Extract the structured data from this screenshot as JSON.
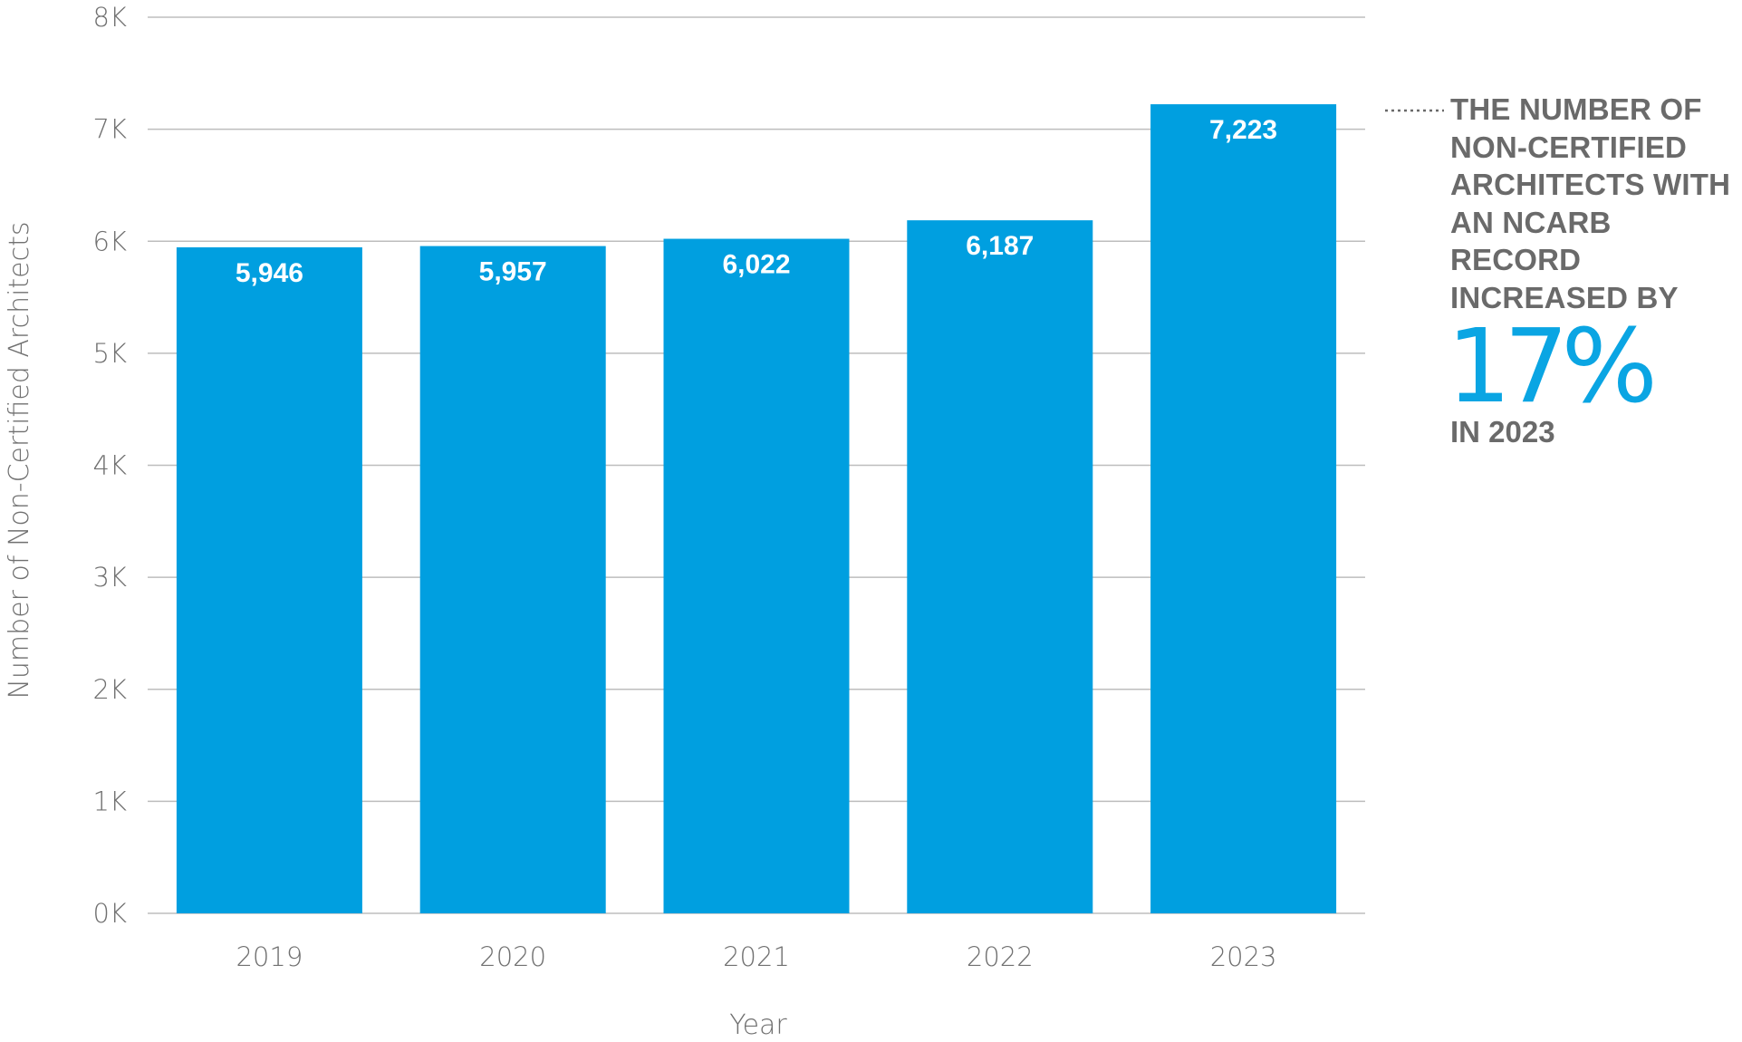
{
  "chart_data": {
    "type": "bar",
    "categories": [
      "2019",
      "2020",
      "2021",
      "2022",
      "2023"
    ],
    "values": [
      5946,
      5957,
      6022,
      6187,
      7223
    ],
    "value_labels": [
      "5,946",
      "5,957",
      "6,022",
      "6,187",
      "7,223"
    ],
    "xlabel": "Year",
    "ylabel": "Number of Non-Certified Architects",
    "ylim": [
      0,
      8000
    ],
    "yticks": [
      0,
      1000,
      2000,
      3000,
      4000,
      5000,
      6000,
      7000,
      8000
    ],
    "ytick_labels": [
      "0K",
      "1K",
      "2K",
      "3K",
      "4K",
      "5K",
      "6K",
      "7K",
      "8K"
    ],
    "grid": true,
    "legend": "none"
  },
  "callout": {
    "text": "THE NUMBER OF\nNON-CERTIFIED\nARCHITECTS WITH\nAN NCARB RECORD\nINCREASED BY",
    "stat": "17%",
    "footer": "IN 2023"
  },
  "colors": {
    "bar": "#009FE0",
    "stat": "#0AA5E3",
    "grid": "#BDBDBD",
    "text": "#707070",
    "callout_text": "#6A6A6A"
  }
}
